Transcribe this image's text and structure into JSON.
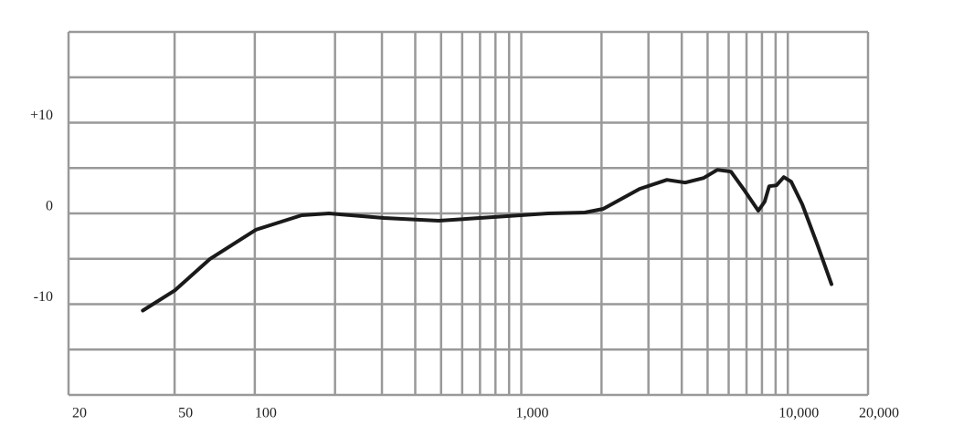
{
  "chart_data": {
    "type": "line",
    "xscale": "log",
    "grid": true,
    "x": [
      38,
      50,
      68,
      101,
      150,
      190,
      305,
      490,
      785,
      1260,
      1730,
      2030,
      2780,
      3520,
      4120,
      4830,
      5440,
      6120,
      6890,
      7750,
      8190,
      8510,
      9070,
      9660,
      10300,
      11330,
      12940,
      14590
    ],
    "series": [
      {
        "color": "#1a1a1a",
        "values": [
          -10.7,
          -8.5,
          -5,
          -1.8,
          -0.2,
          0,
          -0.5,
          -0.8,
          -0.4,
          0,
          0.1,
          0.5,
          2.7,
          3.7,
          3.4,
          3.9,
          4.8,
          4.6,
          2.5,
          0.3,
          1.3,
          3,
          3.1,
          4,
          3.5,
          1,
          -3.5,
          -7.8
        ]
      }
    ],
    "xlim": [
      20,
      20000
    ],
    "xticks": [
      20,
      50,
      100,
      {
        "value": 1000,
        "label": "1,000"
      },
      {
        "value": 10000,
        "label": "10,000"
      },
      {
        "value": 20000,
        "label": "20,000"
      }
    ],
    "xgrid": [
      20,
      50,
      100,
      200,
      300,
      400,
      500,
      600,
      700,
      800,
      900,
      1000,
      2000,
      3000,
      4000,
      5000,
      6000,
      7000,
      8000,
      9000,
      10000,
      20000
    ],
    "ylim": [
      -20,
      20
    ],
    "yticks": [
      {
        "value": 10,
        "label": "+10"
      },
      0,
      -10
    ],
    "ygrid": [
      -20,
      -15,
      -10,
      -5,
      0,
      5,
      10,
      15,
      20
    ]
  }
}
